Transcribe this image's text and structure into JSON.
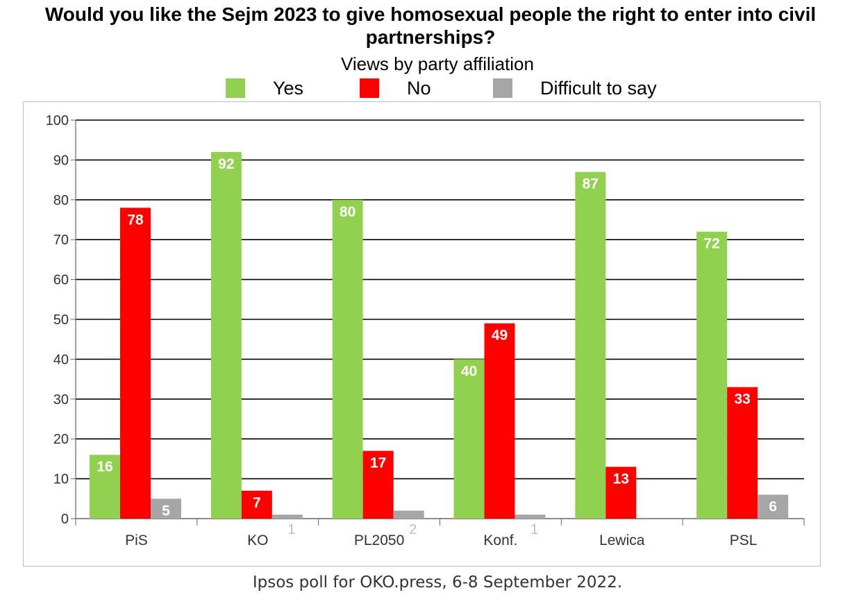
{
  "chart_data": {
    "type": "bar",
    "title": "Would you like the Sejm 2023 to give homosexual people the right to enter into civil partnerships?",
    "subtitle": "Views by party affiliation",
    "source": "Ipsos poll for OKO.press, 6-8 September 2022.",
    "categories": [
      "PiS",
      "KO",
      "PL2050",
      "Konf.",
      "Lewica",
      "PSL"
    ],
    "series": [
      {
        "name": "Yes",
        "color": "#92d050",
        "values": [
          16,
          92,
          80,
          40,
          87,
          72
        ],
        "labels": [
          "16",
          "92",
          "80",
          "40",
          "87",
          "72"
        ]
      },
      {
        "name": "No",
        "color": "#ff0000",
        "values": [
          78,
          7,
          17,
          49,
          13,
          33
        ],
        "labels": [
          "78",
          "7",
          "17",
          "49",
          "13",
          "33"
        ]
      },
      {
        "name": "Difficult to say",
        "color": "#a6a6a6",
        "values": [
          5,
          1,
          2,
          1,
          0,
          6
        ],
        "labels": [
          "5",
          "1",
          "2",
          "1",
          "",
          "6"
        ]
      }
    ],
    "ylim": [
      0,
      100
    ],
    "yticks": [
      0,
      10,
      20,
      30,
      40,
      50,
      60,
      70,
      80,
      90,
      100
    ],
    "grid": true,
    "legend_position": "top"
  }
}
